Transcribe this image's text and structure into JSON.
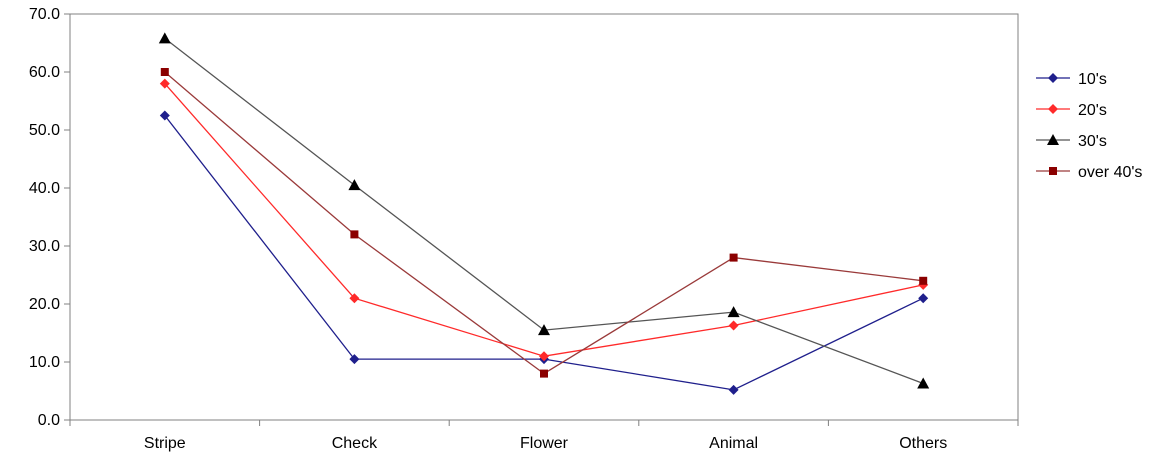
{
  "chart_data": {
    "type": "line",
    "title": "",
    "xlabel": "",
    "ylabel": "",
    "categories": [
      "Stripe",
      "Check",
      "Flower",
      "Animal",
      "Others"
    ],
    "y_ticks": [
      "0.0",
      "10.0",
      "20.0",
      "30.0",
      "40.0",
      "50.0",
      "60.0",
      "70.0"
    ],
    "ylim": [
      0,
      70
    ],
    "grid": false,
    "legend_position": "right",
    "series": [
      {
        "name": "10's",
        "values": [
          52.5,
          10.5,
          10.5,
          5.2,
          21.0
        ],
        "color": "#1f1f8c",
        "marker": "diamond"
      },
      {
        "name": "20's",
        "values": [
          58.0,
          21.0,
          11.0,
          16.3,
          23.3
        ],
        "color": "#ff2a2a",
        "marker": "diamond"
      },
      {
        "name": "30's",
        "values": [
          65.8,
          40.5,
          15.5,
          18.6,
          6.3
        ],
        "color": "#000000",
        "marker": "triangle",
        "line_color": "#555555"
      },
      {
        "name": "over 40's",
        "values": [
          60.0,
          32.0,
          8.0,
          28.0,
          24.0
        ],
        "color": "#8b0000",
        "marker": "square",
        "line_color": "#9a3a3a"
      }
    ]
  }
}
